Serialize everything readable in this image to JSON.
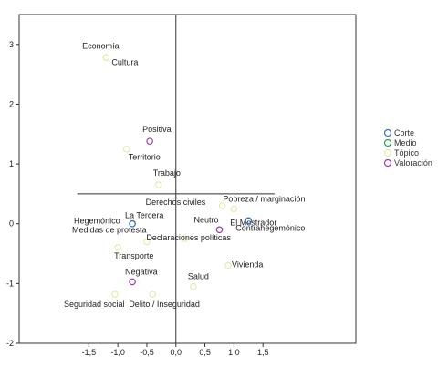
{
  "chart_data": {
    "type": "scatter",
    "xlim": [
      -2.7,
      3.1
    ],
    "ylim": [
      -2.0,
      3.5
    ],
    "x_ticks": [
      {
        "v": -1.5,
        "label": "-1,5"
      },
      {
        "v": -1.0,
        "label": "-1,0"
      },
      {
        "v": -0.5,
        "label": "-0,5"
      },
      {
        "v": 0.0,
        "label": "0,0"
      },
      {
        "v": 0.5,
        "label": "0,5"
      },
      {
        "v": 1.0,
        "label": "1,0"
      },
      {
        "v": 1.5,
        "label": "1,5"
      }
    ],
    "y_ticks": [
      {
        "v": -2,
        "label": "-2"
      },
      {
        "v": -1,
        "label": "-1"
      },
      {
        "v": 0,
        "label": "0"
      },
      {
        "v": 1,
        "label": "1"
      },
      {
        "v": 2,
        "label": "2"
      },
      {
        "v": 3,
        "label": "3"
      }
    ],
    "reference_lines": {
      "vertical_x": 0.0,
      "horizontal": {
        "y": 0.5,
        "x_from": -1.7,
        "x_to": 1.7
      }
    },
    "legend": {
      "placement": "right",
      "entries": [
        {
          "name": "Corte",
          "color": "#3a6fc4"
        },
        {
          "name": "Medio",
          "color": "#2e9e5b"
        },
        {
          "name": "Tópico",
          "color": "#e6ebb0"
        },
        {
          "name": "Valoración",
          "color": "#9b3fa6"
        }
      ]
    },
    "points": [
      {
        "label": "Economía",
        "x": -1.2,
        "y": 2.78,
        "group": "Tópico"
      },
      {
        "label": "Cultura",
        "x": -1.2,
        "y": 2.78,
        "group": "Tópico"
      },
      {
        "label": "Positiva",
        "x": -0.45,
        "y": 1.38,
        "group": "Valoración"
      },
      {
        "label": "Territorio",
        "x": -0.85,
        "y": 1.25,
        "group": "Tópico"
      },
      {
        "label": "Trabajo",
        "x": -0.3,
        "y": 0.65,
        "group": "Tópico"
      },
      {
        "label": "Derechos civiles",
        "x": 0.8,
        "y": 0.3,
        "group": "Tópico"
      },
      {
        "label": "Pobreza / marginación",
        "x": 1.0,
        "y": 0.25,
        "group": "Tópico"
      },
      {
        "label": "El Mostrador",
        "x": 1.25,
        "y": 0.05,
        "group": "Medio"
      },
      {
        "label": "Contrahegemónico",
        "x": 1.25,
        "y": 0.05,
        "group": "Corte"
      },
      {
        "label": "Neutro",
        "x": 0.75,
        "y": -0.1,
        "group": "Valoración"
      },
      {
        "label": "La Tercera",
        "x": -0.75,
        "y": 0.0,
        "group": "Medio"
      },
      {
        "label": "Hegemónico",
        "x": -0.75,
        "y": 0.0,
        "group": "Corte"
      },
      {
        "label": "Medidas de protesta",
        "x": -0.5,
        "y": -0.3,
        "group": "Tópico"
      },
      {
        "label": "Declaraciones políticas",
        "x": 0.15,
        "y": -0.25,
        "group": "Tópico"
      },
      {
        "label": "Transporte",
        "x": -1.0,
        "y": -0.4,
        "group": "Tópico"
      },
      {
        "label": "Vivienda",
        "x": 0.9,
        "y": -0.7,
        "group": "Tópico"
      },
      {
        "label": "Negativa",
        "x": -0.75,
        "y": -0.97,
        "group": "Valoración"
      },
      {
        "label": "Salud",
        "x": 0.3,
        "y": -1.05,
        "group": "Tópico"
      },
      {
        "label": "Seguridad social",
        "x": -1.05,
        "y": -1.18,
        "group": "Tópico"
      },
      {
        "label": "Delito / Inseguridad",
        "x": -0.4,
        "y": -1.18,
        "group": "Tópico"
      }
    ],
    "label_offsets_note": ""
  }
}
